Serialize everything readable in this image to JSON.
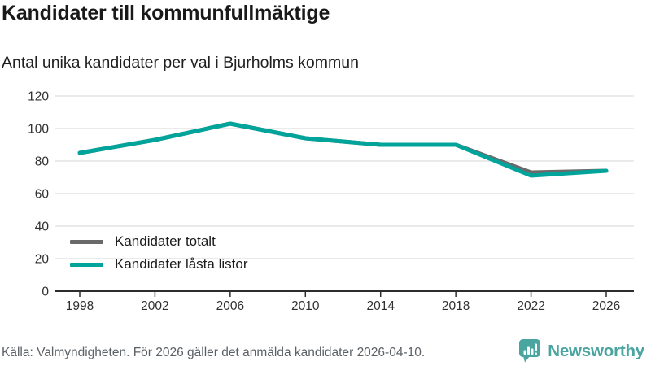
{
  "header": {
    "title": "Kandidater till kommunfullmäktige",
    "subtitle": "Antal unika kandidater per val i Bjurholms kommun"
  },
  "footer": {
    "source": "Källa: Valmyndigheten. För 2026 gäller det anmälda kandidater 2026-04-10.",
    "brand": "Newsworthy"
  },
  "colors": {
    "teal_line": "#00a49a",
    "gray_line": "#6a6a6a",
    "grid": "#e4e4e4",
    "axis": "#2d2d2d",
    "tick_text": "#303030",
    "brand_teal": "#4aa5a0"
  },
  "chart_data": {
    "type": "line",
    "x": [
      1998,
      2002,
      2006,
      2010,
      2014,
      2018,
      2022,
      2026
    ],
    "series": [
      {
        "name": "Kandidater totalt",
        "color": "#6a6a6a",
        "values": [
          85,
          93,
          103,
          94,
          90,
          90,
          73,
          74
        ]
      },
      {
        "name": "Kandidater låsta listor",
        "color": "#00a49a",
        "values": [
          85,
          93,
          103,
          94,
          90,
          90,
          71,
          74
        ]
      }
    ],
    "title": "Kandidater till kommunfullmäktige",
    "subtitle": "Antal unika kandidater per val i Bjurholms kommun",
    "xlabel": "",
    "ylabel": "",
    "ylim": [
      0,
      120
    ],
    "yticks": [
      0,
      20,
      40,
      60,
      80,
      100,
      120
    ],
    "grid": true,
    "legend_position": "inside-bottom-left"
  }
}
